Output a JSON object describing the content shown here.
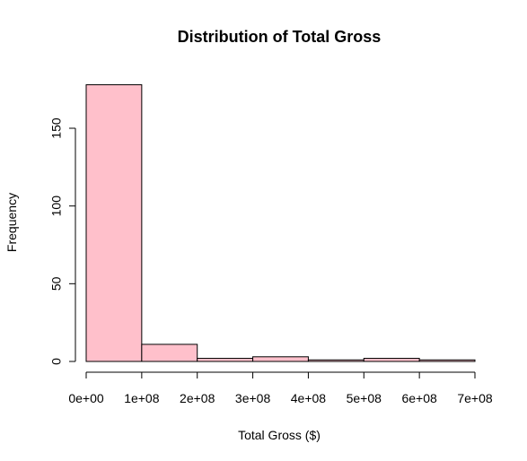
{
  "chart_data": {
    "type": "bar",
    "title": "Distribution of Total Gross",
    "xlabel": "Total Gross ($)",
    "ylabel": "Frequency",
    "xlim": [
      0,
      700000000
    ],
    "ylim": [
      0,
      180
    ],
    "bins": [
      {
        "start": 0,
        "end": 100000000,
        "count": 178
      },
      {
        "start": 100000000,
        "end": 200000000,
        "count": 11
      },
      {
        "start": 200000000,
        "end": 300000000,
        "count": 2
      },
      {
        "start": 300000000,
        "end": 400000000,
        "count": 3
      },
      {
        "start": 400000000,
        "end": 500000000,
        "count": 1
      },
      {
        "start": 500000000,
        "end": 600000000,
        "count": 2
      },
      {
        "start": 600000000,
        "end": 700000000,
        "count": 1
      }
    ],
    "x_ticks": [
      {
        "value": 0,
        "label": "0e+00"
      },
      {
        "value": 100000000,
        "label": "1e+08"
      },
      {
        "value": 200000000,
        "label": "2e+08"
      },
      {
        "value": 300000000,
        "label": "3e+08"
      },
      {
        "value": 400000000,
        "label": "4e+08"
      },
      {
        "value": 500000000,
        "label": "5e+08"
      },
      {
        "value": 600000000,
        "label": "6e+08"
      },
      {
        "value": 700000000,
        "label": "7e+08"
      }
    ],
    "y_ticks": [
      {
        "value": 0,
        "label": "0"
      },
      {
        "value": 50,
        "label": "50"
      },
      {
        "value": 100,
        "label": "100"
      },
      {
        "value": 150,
        "label": "150"
      }
    ],
    "bar_fill": "#FFC0CB",
    "bar_stroke": "#000000",
    "grid": false,
    "legend": "none"
  }
}
